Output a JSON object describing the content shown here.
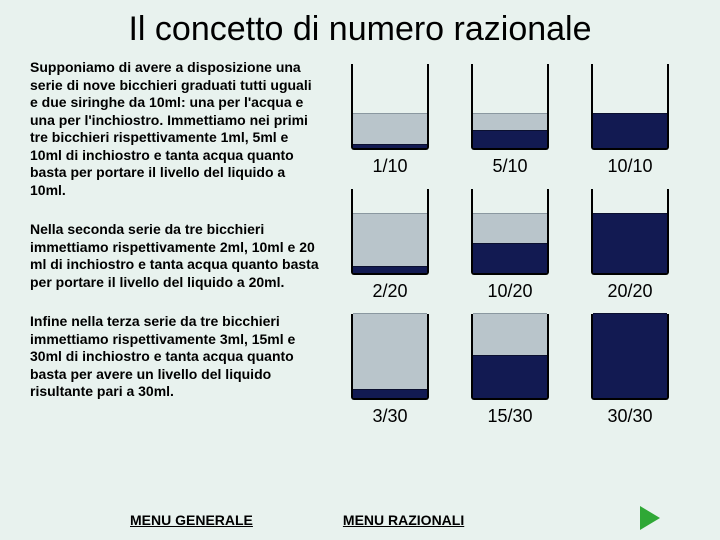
{
  "title": "Il concetto di numero razionale",
  "paragraphs": [
    "Supponiamo di avere a disposizione una serie di nove bicchieri graduati tutti uguali e due siringhe da 10ml: una per l'acqua e una per l'inchiostro. Immettiamo nei primi tre bicchieri rispettivamente 1ml, 5ml e 10ml di inchiostro e tanta acqua quanto basta per portare il livello del liquido a 10ml.",
    "Nella seconda serie da tre bicchieri immettiamo rispettivamente 2ml, 10ml e 20 ml di inchiostro e tanta acqua quanto basta per portare il livello del liquido a 20ml.",
    "Infine nella terza serie da tre bicchieri immettiamo rispettivamente 3ml, 15ml e 30ml di inchiostro e tanta acqua quanto basta per avere un livello del liquido risultante pari a 30ml."
  ],
  "rows": [
    {
      "cells": [
        {
          "label": "1/10",
          "light_pct": 40,
          "dark_pct": 4
        },
        {
          "label": "5/10",
          "light_pct": 40,
          "dark_pct": 20
        },
        {
          "label": "10/10",
          "light_pct": 0,
          "dark_pct": 40
        }
      ]
    },
    {
      "cells": [
        {
          "label": "2/20",
          "light_pct": 70,
          "dark_pct": 7
        },
        {
          "label": "10/20",
          "light_pct": 70,
          "dark_pct": 35
        },
        {
          "label": "20/20",
          "light_pct": 0,
          "dark_pct": 70
        }
      ]
    },
    {
      "cells": [
        {
          "label": "3/30",
          "light_pct": 100,
          "dark_pct": 10
        },
        {
          "label": "15/30",
          "light_pct": 100,
          "dark_pct": 50
        },
        {
          "label": "30/30",
          "light_pct": 0,
          "dark_pct": 100
        }
      ]
    }
  ],
  "links": {
    "menu_generale": "MENU GENERALE",
    "menu_razionali": "MENU RAZIONALI"
  },
  "colors": {
    "background": "#e8f2ee",
    "light_liquid": "#b9c5cb",
    "dark_liquid": "#121a52",
    "arrow": "#2fa836"
  }
}
